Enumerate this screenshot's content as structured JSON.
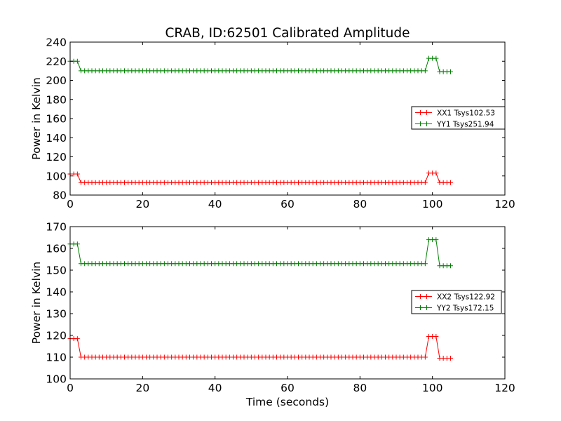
{
  "chart_data": {
    "type": "line",
    "title": "CRAB, ID:62501 Calibrated Amplitude",
    "xlabel": "Time (seconds)",
    "x_step": 1,
    "grid": false,
    "panels": [
      {
        "ylabel": "Power in Kelvin",
        "xlim": [
          0,
          120
        ],
        "ylim": [
          80,
          240
        ],
        "xticks": [
          0,
          20,
          40,
          60,
          80,
          100,
          120
        ],
        "yticks": [
          80,
          100,
          120,
          140,
          160,
          180,
          200,
          220,
          240
        ],
        "legend_position": "center-right",
        "series": [
          {
            "name": "XX1 Tsys102.53",
            "color": "#ff0000",
            "levels": [
              {
                "x_from": 0,
                "x_to": 2,
                "y": 102
              },
              {
                "x_from": 3,
                "x_to": 98,
                "y": 93
              },
              {
                "x_from": 99,
                "x_to": 101,
                "y": 103
              },
              {
                "x_from": 102,
                "x_to": 105,
                "y": 93
              }
            ]
          },
          {
            "name": "YY1 Tsys251.94",
            "color": "#008000",
            "levels": [
              {
                "x_from": 0,
                "x_to": 2,
                "y": 220
              },
              {
                "x_from": 3,
                "x_to": 98,
                "y": 210
              },
              {
                "x_from": 99,
                "x_to": 101,
                "y": 223
              },
              {
                "x_from": 102,
                "x_to": 105,
                "y": 209
              }
            ]
          }
        ]
      },
      {
        "ylabel": "Power in Kelvin",
        "xlim": [
          0,
          120
        ],
        "ylim": [
          100,
          170
        ],
        "xticks": [
          0,
          20,
          40,
          60,
          80,
          100,
          120
        ],
        "yticks": [
          100,
          110,
          120,
          130,
          140,
          150,
          160,
          170
        ],
        "legend_position": "center-right",
        "series": [
          {
            "name": "XX2 Tsys122.92",
            "color": "#ff0000",
            "levels": [
              {
                "x_from": 0,
                "x_to": 2,
                "y": 118.5
              },
              {
                "x_from": 3,
                "x_to": 98,
                "y": 110
              },
              {
                "x_from": 99,
                "x_to": 101,
                "y": 119.5
              },
              {
                "x_from": 102,
                "x_to": 105,
                "y": 109.5
              }
            ]
          },
          {
            "name": "YY2 Tsys172.15",
            "color": "#008000",
            "levels": [
              {
                "x_from": 0,
                "x_to": 2,
                "y": 162
              },
              {
                "x_from": 3,
                "x_to": 98,
                "y": 153
              },
              {
                "x_from": 99,
                "x_to": 101,
                "y": 164
              },
              {
                "x_from": 102,
                "x_to": 105,
                "y": 152
              }
            ]
          }
        ]
      }
    ]
  }
}
